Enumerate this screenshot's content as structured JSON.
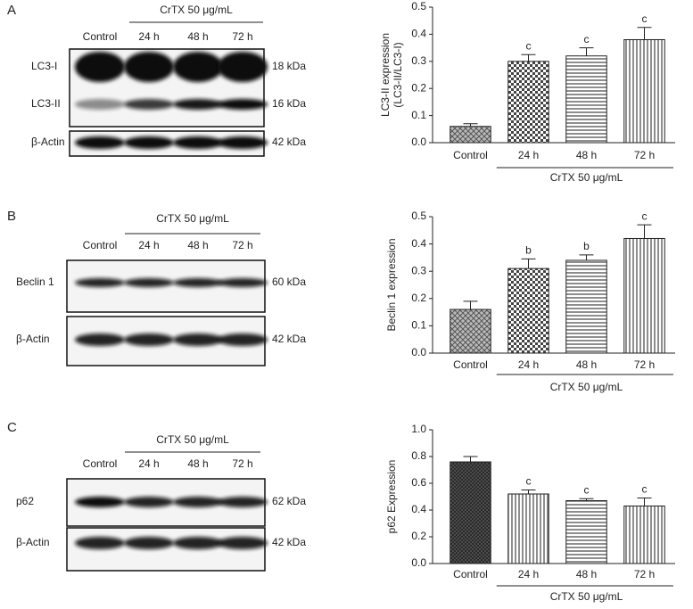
{
  "panels": [
    {
      "letter": "A",
      "header": "CrTX 50 μg/mL",
      "lanes": [
        "Control",
        "24 h",
        "48 h",
        "72 h"
      ],
      "rows": [
        {
          "name": "LC3-I",
          "kda": "18 kDa"
        },
        {
          "name": "LC3-II",
          "kda": "16 kDa"
        },
        {
          "name": "β-Actin",
          "kda": "42 kDa"
        }
      ]
    },
    {
      "letter": "B",
      "header": "CrTX 50 μg/mL",
      "lanes": [
        "Control",
        "24 h",
        "48 h",
        "72 h"
      ],
      "rows": [
        {
          "name": "Beclin 1",
          "kda": "60 kDa"
        },
        {
          "name": "β-Actin",
          "kda": "42 kDa"
        }
      ]
    },
    {
      "letter": "C",
      "header": "CrTX 50 μg/mL",
      "lanes": [
        "Control",
        "24 h",
        "48 h",
        "72 h"
      ],
      "rows": [
        {
          "name": "p62",
          "kda": "62 kDa"
        },
        {
          "name": "β-Actin",
          "kda": "42 kDa"
        }
      ]
    }
  ],
  "chart_data": [
    {
      "type": "bar",
      "ylabel": [
        "LC3-II expression",
        "(LC3-II/LC3-I)"
      ],
      "categories": [
        "Control",
        "24 h",
        "48 h",
        "72 h"
      ],
      "values": [
        0.06,
        0.3,
        0.32,
        0.38
      ],
      "errors": [
        0.01,
        0.025,
        0.03,
        0.045
      ],
      "annotations": [
        null,
        "c",
        "c",
        "c"
      ],
      "group_label": "CrTX 50 μg/mL",
      "patterns": [
        "crosshatch",
        "checker",
        "horizontal",
        "vertical"
      ],
      "ylim": [
        0,
        0.5
      ],
      "yticks": [
        {
          "value": 0,
          "label": "0.0"
        },
        0.1,
        0.2,
        0.3,
        0.4,
        0.5
      ]
    },
    {
      "type": "bar",
      "ylabel": [
        "Beclin 1 expression"
      ],
      "categories": [
        "Control",
        "24 h",
        "48 h",
        "72 h"
      ],
      "values": [
        0.16,
        0.31,
        0.34,
        0.42
      ],
      "errors": [
        0.03,
        0.035,
        0.02,
        0.05
      ],
      "annotations": [
        null,
        "b",
        "b",
        "c"
      ],
      "group_label": "CrTX 50 μg/mL",
      "patterns": [
        "crosshatch",
        "checker",
        "horizontal",
        "vertical"
      ],
      "ylim": [
        0,
        0.5
      ],
      "yticks": [
        {
          "value": 0,
          "label": "0.0"
        },
        0.1,
        0.2,
        0.3,
        0.4,
        0.5
      ]
    },
    {
      "type": "bar",
      "ylabel": [
        "p62 Expression"
      ],
      "categories": [
        "Control",
        "24 h",
        "48 h",
        "72 h"
      ],
      "values": [
        0.76,
        0.52,
        0.47,
        0.43
      ],
      "errors": [
        0.04,
        0.03,
        0.015,
        0.06
      ],
      "annotations": [
        null,
        "c",
        "c",
        "c"
      ],
      "group_label": "CrTX 50 μg/mL",
      "patterns": [
        "dense",
        "vertical",
        "horizontal",
        "vertical"
      ],
      "ylim": [
        0,
        1.0
      ],
      "yticks": [
        {
          "value": 0,
          "label": "0.0"
        },
        0.2,
        0.4,
        0.6,
        0.8,
        {
          "value": 1.0,
          "label": "1.0"
        }
      ]
    }
  ]
}
